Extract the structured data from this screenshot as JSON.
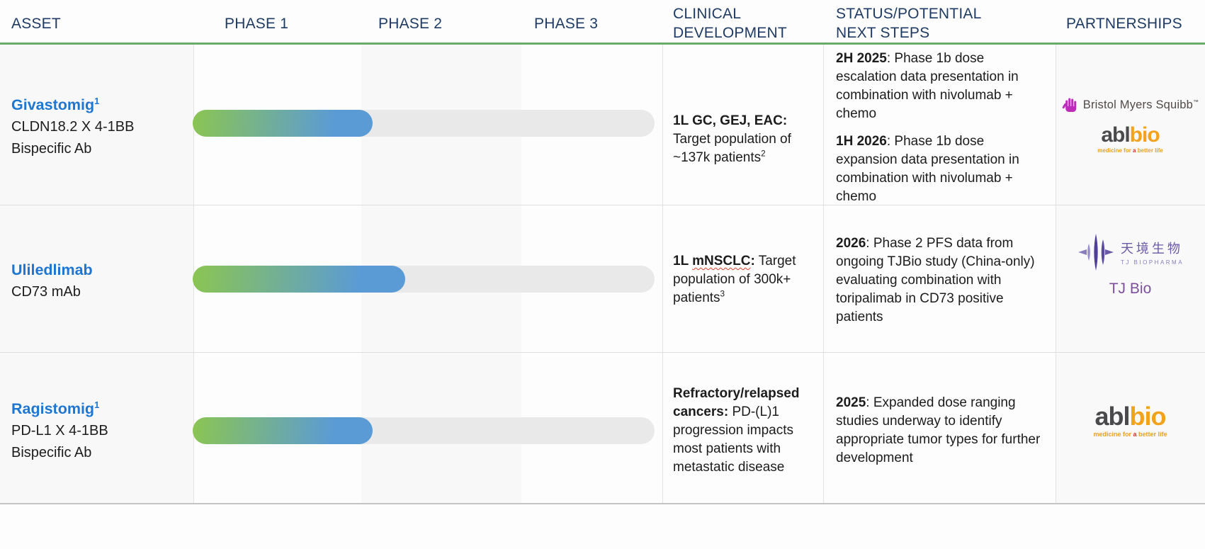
{
  "header": {
    "asset": "ASSET",
    "phase1": "PHASE 1",
    "phase2": "PHASE 2",
    "phase3": "PHASE 3",
    "clinical": "CLINICAL DEVELOPMENT",
    "status": "STATUS/POTENTIAL NEXT STEPS",
    "partnerships": "PARTNERSHIPS"
  },
  "colors": {
    "header_navy": "#1f3b64",
    "header_rule_green": "#6aab6c",
    "asset_name_blue": "#1d76d2",
    "bar_gradient_green": "#8bc552",
    "bar_gradient_blue": "#5b9bd5",
    "bar_track_gray": "#e9e9e9",
    "spellcheck_squiggle_red": "#e23d28",
    "bms_magenta": "#be2bbb",
    "abl_dark_gray": "#4a4a4c",
    "abl_gold": "#f2a31b",
    "abl_tagline_red": "#d0342c",
    "tj_purple": "#5a4b9c",
    "tj_bio_text_purple": "#7d4fa0"
  },
  "chart_data": {
    "type": "bar",
    "orientation": "horizontal",
    "title": "Clinical pipeline phase progress",
    "categories": [
      "Givastomig",
      "Uliledlimab",
      "Ragistomig"
    ],
    "values": [
      39,
      46,
      39
    ],
    "value_unit": "percent of Phase 1 - Phase 3 track filled",
    "x_axis_phases": [
      "PHASE 1",
      "PHASE 2",
      "PHASE 3"
    ],
    "legend": "off",
    "grid": "off"
  },
  "logos": {
    "bms": {
      "name": "Bristol Myers Squibb",
      "tm": "™"
    },
    "ablbio": {
      "part1": "abl",
      "part2": "bio",
      "tagline_pre": "medicine for ",
      "tagline_a": "a",
      "tagline_post": " better life"
    },
    "tjbio": {
      "cn": "天境生物",
      "en": "TJ BIOPHARMA",
      "label": "TJ Bio"
    }
  },
  "rows": [
    {
      "name": "Givastomig",
      "name_sup": "1",
      "target": "CLDN18.2 X 4-1BB",
      "modality": "Bispecific Ab",
      "bar": {
        "fill_pct": 39
      },
      "clinical": {
        "lead": "1L GC, GEJ, EAC:",
        "rest": " Target population of ~137k patients",
        "sup": "2"
      },
      "status": [
        {
          "lead": "2H 2025",
          "rest": ": Phase 1b dose escalation data presentation in combination with nivolumab + chemo"
        },
        {
          "lead": "1H 2026",
          "rest": ": Phase 1b dose expansion data presentation in combination with nivolumab + chemo"
        }
      ],
      "partners": [
        "Bristol Myers Squibb",
        "ABL Bio"
      ]
    },
    {
      "name": "Uliledlimab",
      "name_sup": "",
      "target": "CD73 mAb",
      "modality": "",
      "bar": {
        "fill_pct": 46
      },
      "clinical": {
        "lead_pre": "1L ",
        "wavy": "mNSCLC",
        "lead_post": ":",
        "rest": " Target population of 300k+ patients",
        "sup": "3"
      },
      "status": [
        {
          "lead": "2026",
          "rest": ": Phase 2 PFS data from ongoing TJBio study (China-only) evaluating combination with toripalimab in CD73 positive patients"
        }
      ],
      "partners": [
        "TJ Bio"
      ]
    },
    {
      "name": "Ragistomig",
      "name_sup": "1",
      "target": "PD-L1 X 4-1BB",
      "modality": "Bispecific Ab",
      "bar": {
        "fill_pct": 39
      },
      "clinical": {
        "lead": "Refractory/relapsed cancers:",
        "rest": " PD-(L)1 progression impacts most patients with metastatic disease",
        "sup": ""
      },
      "status": [
        {
          "lead": "2025",
          "rest": ": Expanded dose ranging studies underway to identify appropriate tumor types for further development"
        }
      ],
      "partners": [
        "ABL Bio"
      ]
    }
  ]
}
